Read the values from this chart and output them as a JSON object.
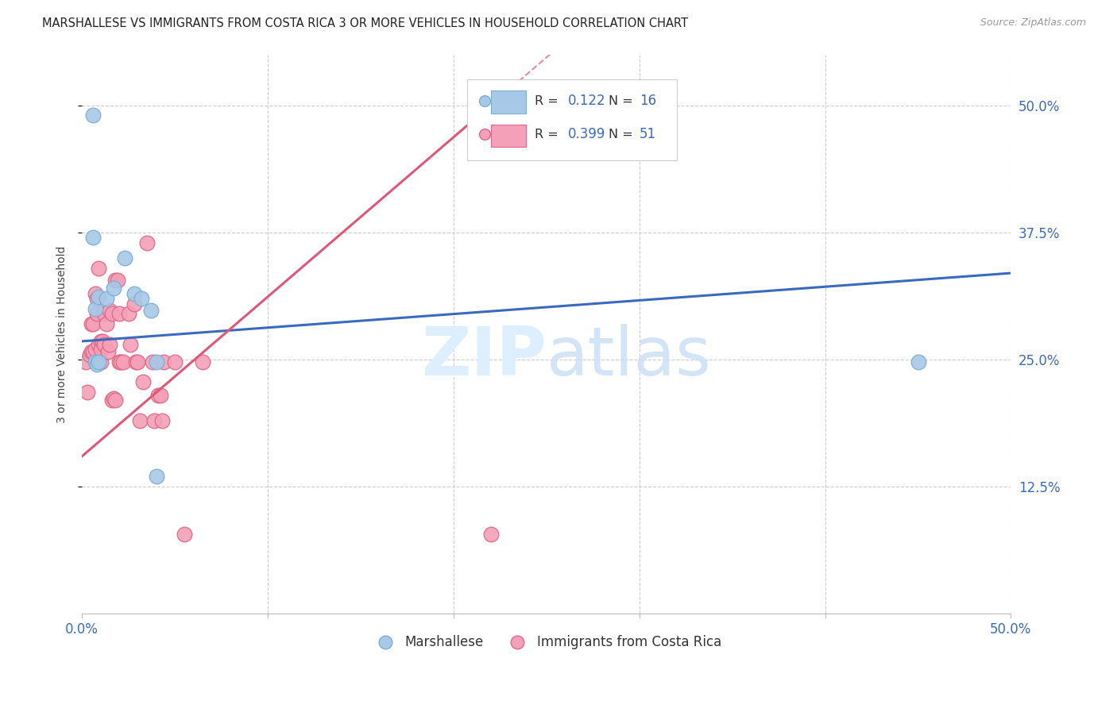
{
  "title": "MARSHALLESE VS IMMIGRANTS FROM COSTA RICA 3 OR MORE VEHICLES IN HOUSEHOLD CORRELATION CHART",
  "source": "Source: ZipAtlas.com",
  "ylabel": "3 or more Vehicles in Household",
  "xlim": [
    0.0,
    0.5
  ],
  "ylim": [
    0.0,
    0.55
  ],
  "blue_scatter_color": "#a8c8e8",
  "blue_edge_color": "#7aafd4",
  "pink_scatter_color": "#f4a0b8",
  "pink_edge_color": "#e06888",
  "line_blue_color": "#3a6abf",
  "line_pink_color": "#e05878",
  "label_color": "#3a6abf",
  "grid_color": "#cccccc",
  "marshallese_R": "0.122",
  "marshallese_N": "16",
  "costarica_R": "0.399",
  "costarica_N": "51",
  "marshallese_x": [
    0.006,
    0.006,
    0.007,
    0.007,
    0.008,
    0.009,
    0.009,
    0.013,
    0.017,
    0.023,
    0.028,
    0.032,
    0.037,
    0.04,
    0.04,
    0.45
  ],
  "marshallese_y": [
    0.49,
    0.37,
    0.3,
    0.248,
    0.245,
    0.312,
    0.248,
    0.31,
    0.32,
    0.35,
    0.315,
    0.31,
    0.298,
    0.248,
    0.135,
    0.248
  ],
  "costarica_x": [
    0.002,
    0.003,
    0.004,
    0.005,
    0.005,
    0.006,
    0.006,
    0.007,
    0.007,
    0.008,
    0.008,
    0.009,
    0.009,
    0.01,
    0.01,
    0.01,
    0.011,
    0.012,
    0.012,
    0.013,
    0.014,
    0.015,
    0.015,
    0.016,
    0.016,
    0.017,
    0.018,
    0.018,
    0.019,
    0.02,
    0.02,
    0.021,
    0.022,
    0.025,
    0.026,
    0.028,
    0.029,
    0.03,
    0.031,
    0.033,
    0.035,
    0.038,
    0.039,
    0.041,
    0.042,
    0.043,
    0.044,
    0.05,
    0.055,
    0.065,
    0.22
  ],
  "costarica_y": [
    0.248,
    0.218,
    0.255,
    0.258,
    0.285,
    0.258,
    0.285,
    0.315,
    0.26,
    0.31,
    0.295,
    0.265,
    0.34,
    0.248,
    0.268,
    0.26,
    0.268,
    0.265,
    0.295,
    0.285,
    0.258,
    0.265,
    0.298,
    0.21,
    0.295,
    0.212,
    0.21,
    0.328,
    0.328,
    0.248,
    0.295,
    0.248,
    0.248,
    0.295,
    0.265,
    0.305,
    0.248,
    0.248,
    0.19,
    0.228,
    0.365,
    0.248,
    0.19,
    0.215,
    0.215,
    0.19,
    0.248,
    0.248,
    0.078,
    0.248,
    0.078
  ],
  "background_color": "#ffffff"
}
